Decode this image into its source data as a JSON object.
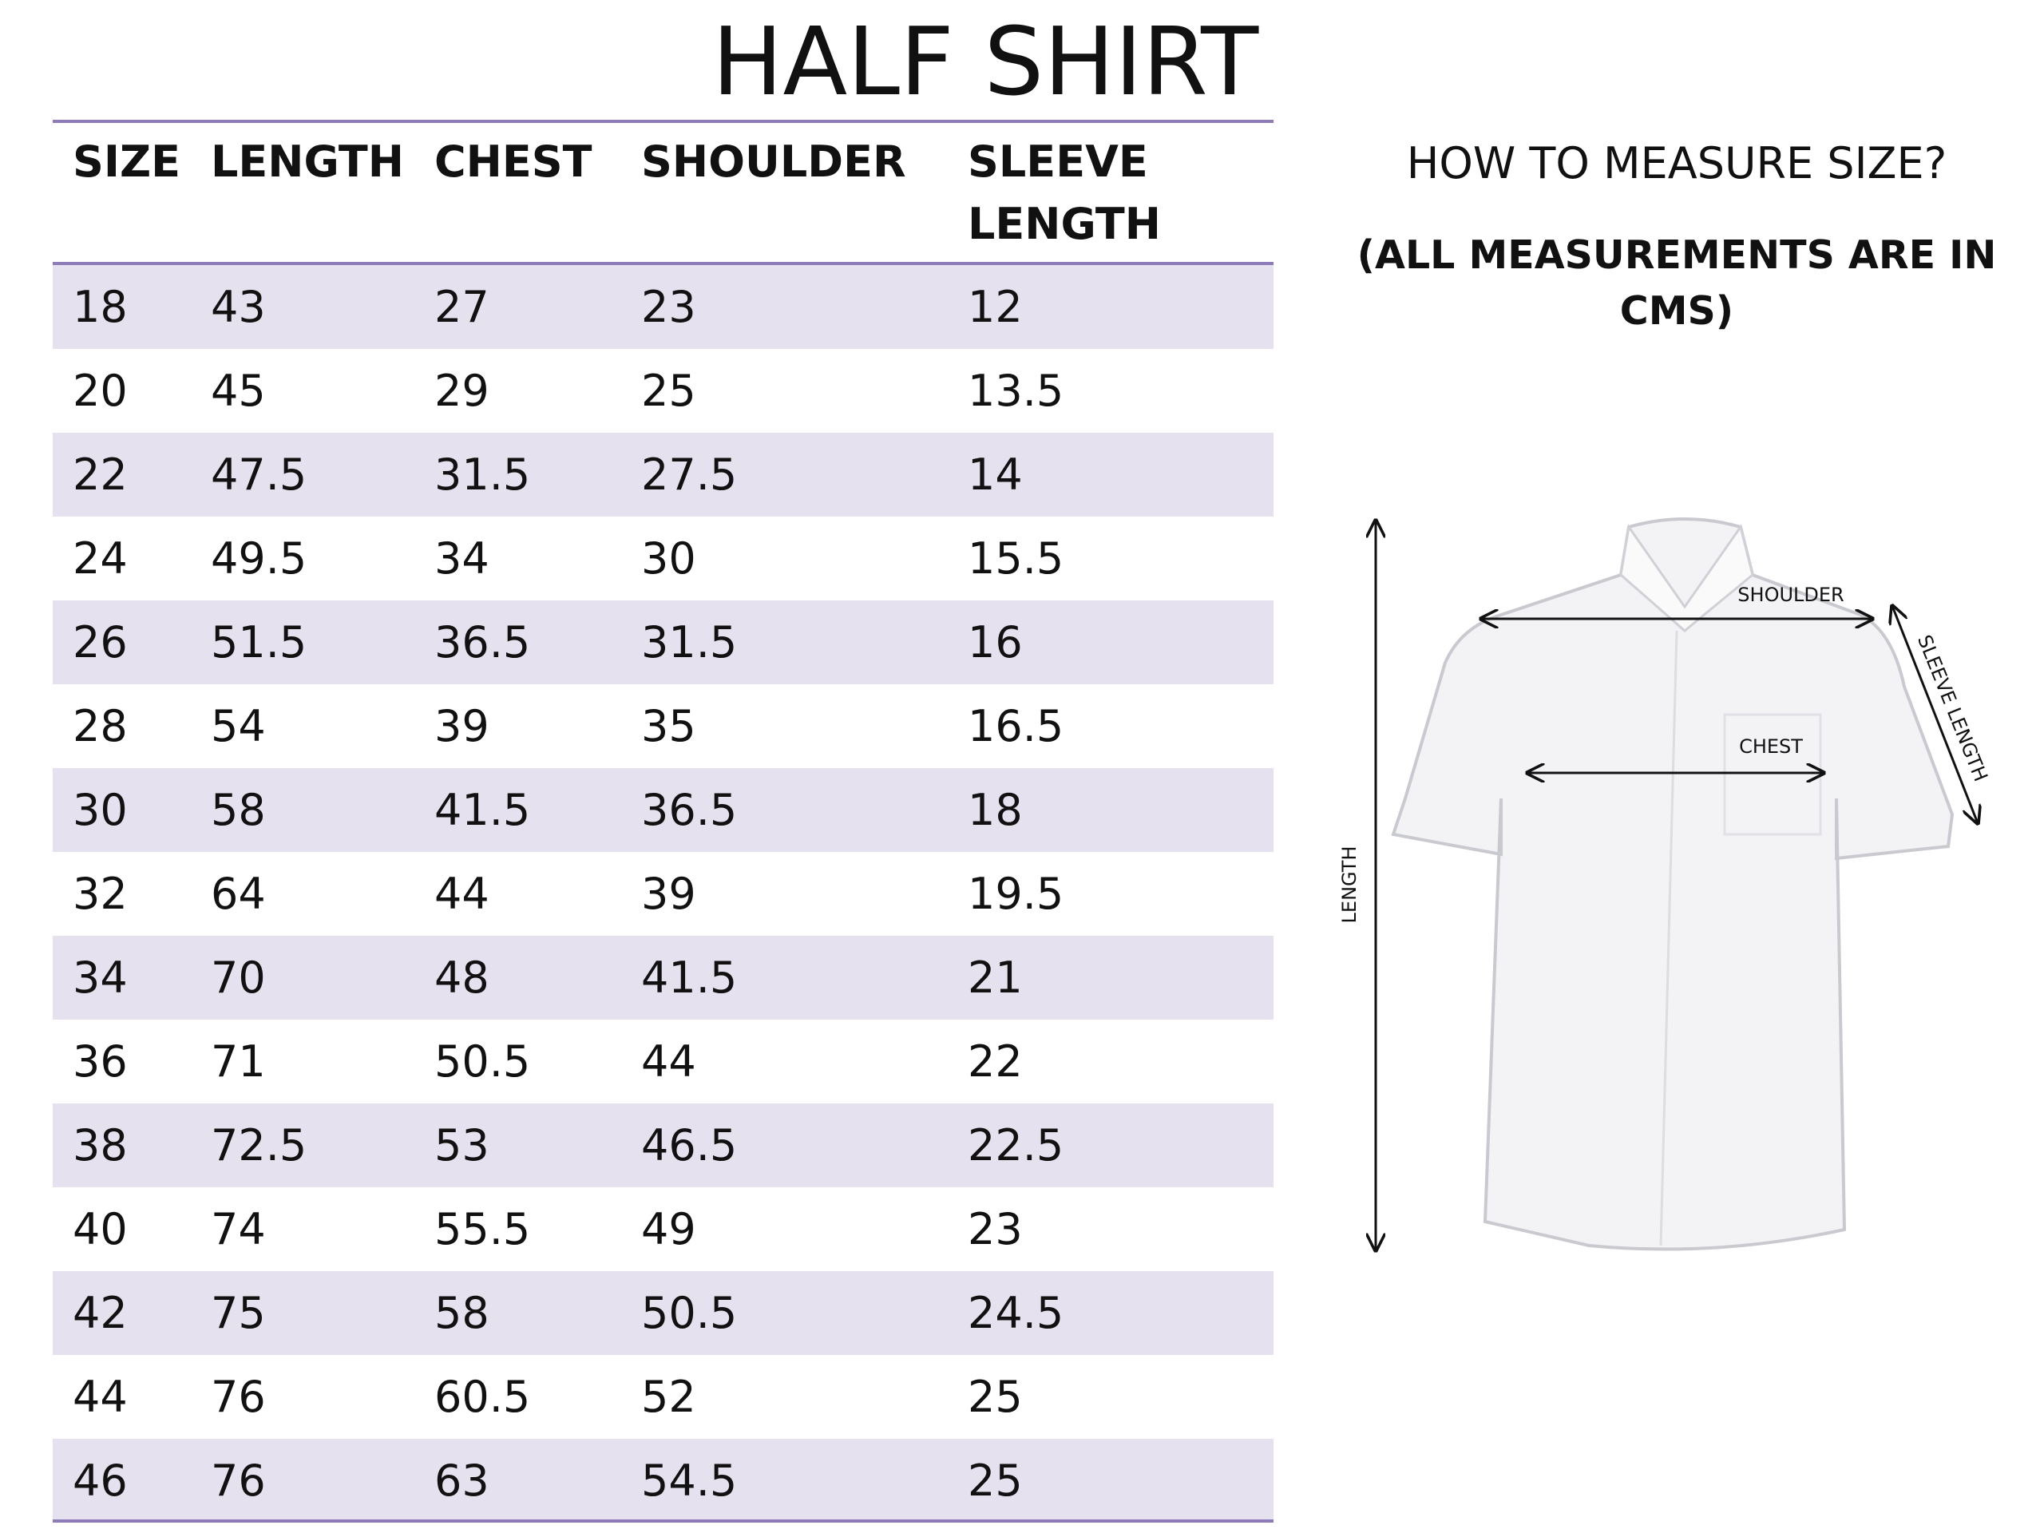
{
  "header": {
    "title": "HALF SHIRT"
  },
  "table": {
    "columns": [
      "SIZE",
      "LENGTH",
      "CHEST",
      "SHOULDER",
      "SLEEVE LENGTH"
    ],
    "rows": [
      [
        "18",
        "43",
        "27",
        "23",
        "12"
      ],
      [
        "20",
        "45",
        "29",
        "25",
        "13.5"
      ],
      [
        "22",
        "47.5",
        "31.5",
        "27.5",
        "14"
      ],
      [
        "24",
        "49.5",
        "34",
        "30",
        "15.5"
      ],
      [
        "26",
        "51.5",
        "36.5",
        "31.5",
        "16"
      ],
      [
        "28",
        "54",
        "39",
        "35",
        "16.5"
      ],
      [
        "30",
        "58",
        "41.5",
        "36.5",
        "18"
      ],
      [
        "32",
        "64",
        "44",
        "39",
        "19.5"
      ],
      [
        "34",
        "70",
        "48",
        "41.5",
        "21"
      ],
      [
        "36",
        "71",
        "50.5",
        "44",
        "22"
      ],
      [
        "38",
        "72.5",
        "53",
        "46.5",
        "22.5"
      ],
      [
        "40",
        "74",
        "55.5",
        "49",
        "23"
      ],
      [
        "42",
        "75",
        "58",
        "50.5",
        "24.5"
      ],
      [
        "44",
        "76",
        "60.5",
        "52",
        "25"
      ],
      [
        "46",
        "76",
        "63",
        "54.5",
        "25"
      ]
    ]
  },
  "guide": {
    "heading": "HOW TO MEASURE SIZE?",
    "note": "(ALL MEASUREMENTS ARE IN CMS)",
    "labels": {
      "shoulder": "SHOULDER",
      "chest": "CHEST",
      "length": "LENGTH",
      "sleeve": "SLEEVE LENGTH"
    }
  }
}
